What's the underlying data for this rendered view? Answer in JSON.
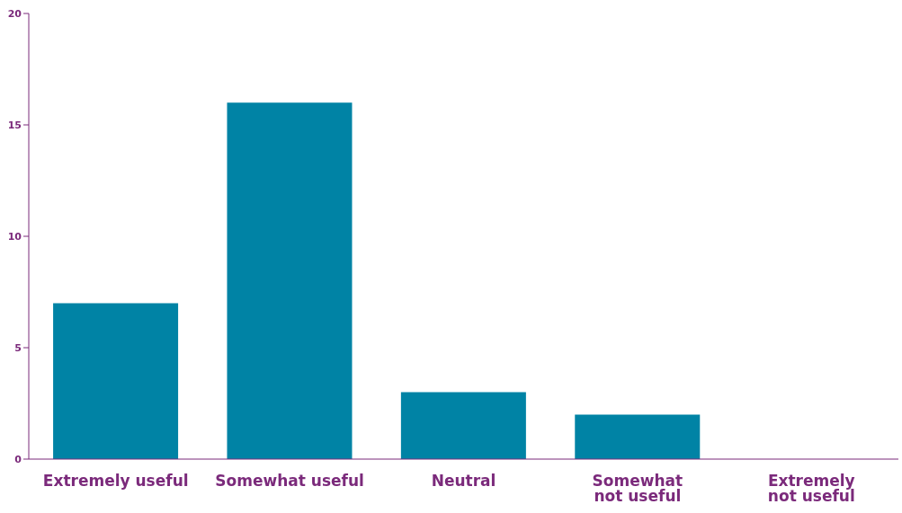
{
  "chart_data": {
    "type": "bar",
    "categories": [
      "Extremely useful",
      "Somewhat useful",
      "Neutral",
      "Somewhat not useful",
      "Extremely not useful"
    ],
    "values": [
      7,
      16,
      3,
      2,
      0
    ],
    "color": "#0083a5",
    "ylim": [
      0,
      20
    ],
    "yticks": [
      0,
      5,
      10,
      15,
      20
    ],
    "grid": false
  }
}
